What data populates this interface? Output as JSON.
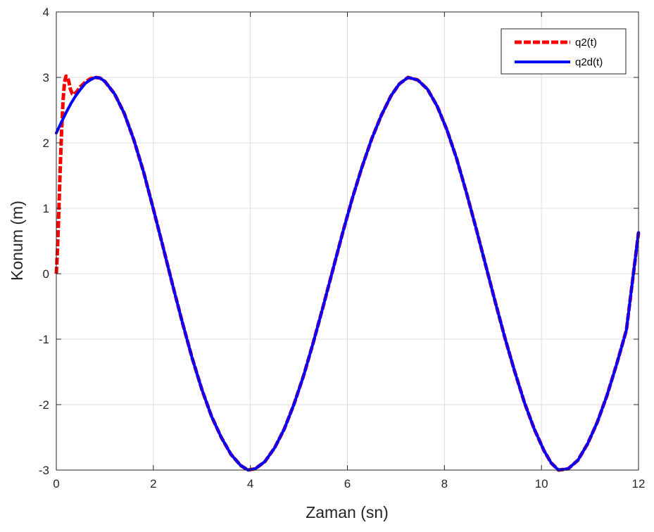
{
  "chart_data": {
    "type": "line",
    "xlabel": "Zaman (sn)",
    "ylabel": "Konum (m)",
    "xlim": [
      0,
      12
    ],
    "ylim": [
      -3,
      4
    ],
    "xticks": [
      0,
      2,
      4,
      6,
      8,
      10,
      12
    ],
    "yticks": [
      -3,
      -2,
      -1,
      0,
      1,
      2,
      3,
      4
    ],
    "grid": true,
    "legend_position": "top-right",
    "series": [
      {
        "name": "q2(t)",
        "color": "#ff0000",
        "style": "dashed",
        "x": [
          0,
          0.02,
          0.05,
          0.08,
          0.11,
          0.14,
          0.17,
          0.2,
          0.23,
          0.26,
          0.29,
          0.33,
          0.37,
          0.42,
          0.5,
          0.6,
          0.7,
          0.8,
          0.9,
          1.0,
          1.2,
          1.4,
          1.6,
          1.8,
          2.0,
          2.2,
          2.4,
          2.6,
          2.8,
          3.0,
          3.2,
          3.4,
          3.6,
          3.8,
          3.95,
          4.1,
          4.3,
          4.5,
          4.7,
          4.9,
          5.1,
          5.3,
          5.5,
          5.7,
          5.9,
          6.1,
          6.3,
          6.5,
          6.7,
          6.9,
          7.07,
          7.25,
          7.45,
          7.65,
          7.85,
          8.05,
          8.25,
          8.45,
          8.65,
          8.85,
          9.05,
          9.25,
          9.45,
          9.65,
          9.85,
          10.05,
          10.2,
          10.35,
          10.55,
          10.75,
          10.95,
          11.15,
          11.35,
          11.55,
          11.75,
          12.0
        ],
        "y": [
          0.0,
          0.3,
          0.9,
          1.6,
          2.2,
          2.65,
          2.93,
          3.02,
          3.0,
          2.93,
          2.82,
          2.75,
          2.74,
          2.78,
          2.86,
          2.93,
          2.98,
          3.0,
          2.99,
          2.94,
          2.75,
          2.45,
          2.04,
          1.55,
          0.99,
          0.41,
          -0.18,
          -0.75,
          -1.29,
          -1.77,
          -2.18,
          -2.5,
          -2.76,
          -2.93,
          -3.0,
          -2.98,
          -2.87,
          -2.66,
          -2.37,
          -1.99,
          -1.55,
          -1.04,
          -0.5,
          0.06,
          0.62,
          1.15,
          1.63,
          2.06,
          2.42,
          2.72,
          2.9,
          3.0,
          2.96,
          2.82,
          2.56,
          2.2,
          1.76,
          1.25,
          0.7,
          0.13,
          -0.44,
          -0.99,
          -1.5,
          -1.97,
          -2.37,
          -2.7,
          -2.89,
          -3.0,
          -2.98,
          -2.85,
          -2.6,
          -2.27,
          -1.86,
          -1.38,
          -0.86,
          0.63
        ]
      },
      {
        "name": "q2d(t)",
        "color": "#0000ff",
        "style": "solid",
        "x": [
          0,
          0.1,
          0.2,
          0.3,
          0.4,
          0.5,
          0.6,
          0.7,
          0.8,
          0.9,
          1.0,
          1.2,
          1.4,
          1.6,
          1.8,
          2.0,
          2.2,
          2.4,
          2.6,
          2.8,
          3.0,
          3.2,
          3.4,
          3.6,
          3.8,
          3.95,
          4.1,
          4.3,
          4.5,
          4.7,
          4.9,
          5.1,
          5.3,
          5.5,
          5.7,
          5.9,
          6.1,
          6.3,
          6.5,
          6.7,
          6.9,
          7.07,
          7.25,
          7.45,
          7.65,
          7.85,
          8.05,
          8.25,
          8.45,
          8.65,
          8.85,
          9.05,
          9.25,
          9.45,
          9.65,
          9.85,
          10.05,
          10.2,
          10.35,
          10.55,
          10.75,
          10.95,
          11.15,
          11.35,
          11.55,
          11.75,
          12.0
        ],
        "y": [
          2.15,
          2.31,
          2.46,
          2.6,
          2.72,
          2.82,
          2.91,
          2.96,
          3.0,
          2.99,
          2.94,
          2.75,
          2.45,
          2.04,
          1.55,
          0.99,
          0.41,
          -0.18,
          -0.75,
          -1.29,
          -1.77,
          -2.18,
          -2.5,
          -2.76,
          -2.93,
          -3.0,
          -2.98,
          -2.87,
          -2.66,
          -2.37,
          -1.99,
          -1.55,
          -1.04,
          -0.5,
          0.06,
          0.62,
          1.15,
          1.63,
          2.06,
          2.42,
          2.72,
          2.9,
          3.0,
          2.96,
          2.82,
          2.56,
          2.2,
          1.76,
          1.25,
          0.7,
          0.13,
          -0.44,
          -0.99,
          -1.5,
          -1.97,
          -2.37,
          -2.7,
          -2.89,
          -3.0,
          -2.98,
          -2.85,
          -2.6,
          -2.27,
          -1.86,
          -1.38,
          -0.86,
          0.63
        ]
      }
    ]
  }
}
